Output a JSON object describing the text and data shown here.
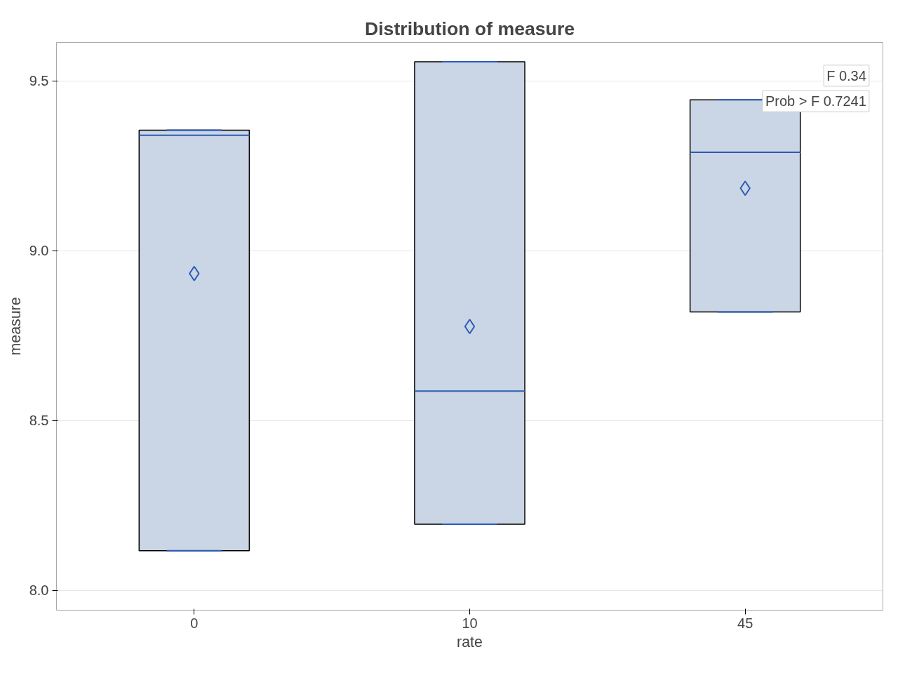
{
  "chart_data": {
    "type": "box",
    "title": "Distribution of measure",
    "xlabel": "rate",
    "ylabel": "measure",
    "categories": [
      "0",
      "10",
      "45"
    ],
    "color": "#cad5e5",
    "boxes": [
      {
        "low": 8.117,
        "q1": 8.117,
        "median": 9.34,
        "q3": 9.355,
        "high": 9.355,
        "mean": 8.933
      },
      {
        "low": 8.195,
        "q1": 8.195,
        "median": 8.587,
        "q3": 9.556,
        "high": 9.556,
        "mean": 8.777
      },
      {
        "low": 8.82,
        "q1": 8.82,
        "median": 9.29,
        "q3": 9.444,
        "high": 9.444,
        "mean": 9.184
      }
    ],
    "ylim": [
      7.942,
      9.613
    ],
    "yticks": [
      {
        "value": 8.0,
        "label": "8.0"
      },
      {
        "value": 8.5,
        "label": "8.5"
      },
      {
        "value": 9.0,
        "label": "9.0"
      },
      {
        "value": 9.5,
        "label": "9.5"
      }
    ],
    "grid": "y",
    "marker": "diamond",
    "annotations": [
      "F 0.34",
      "Prob > F 0.7241"
    ]
  }
}
